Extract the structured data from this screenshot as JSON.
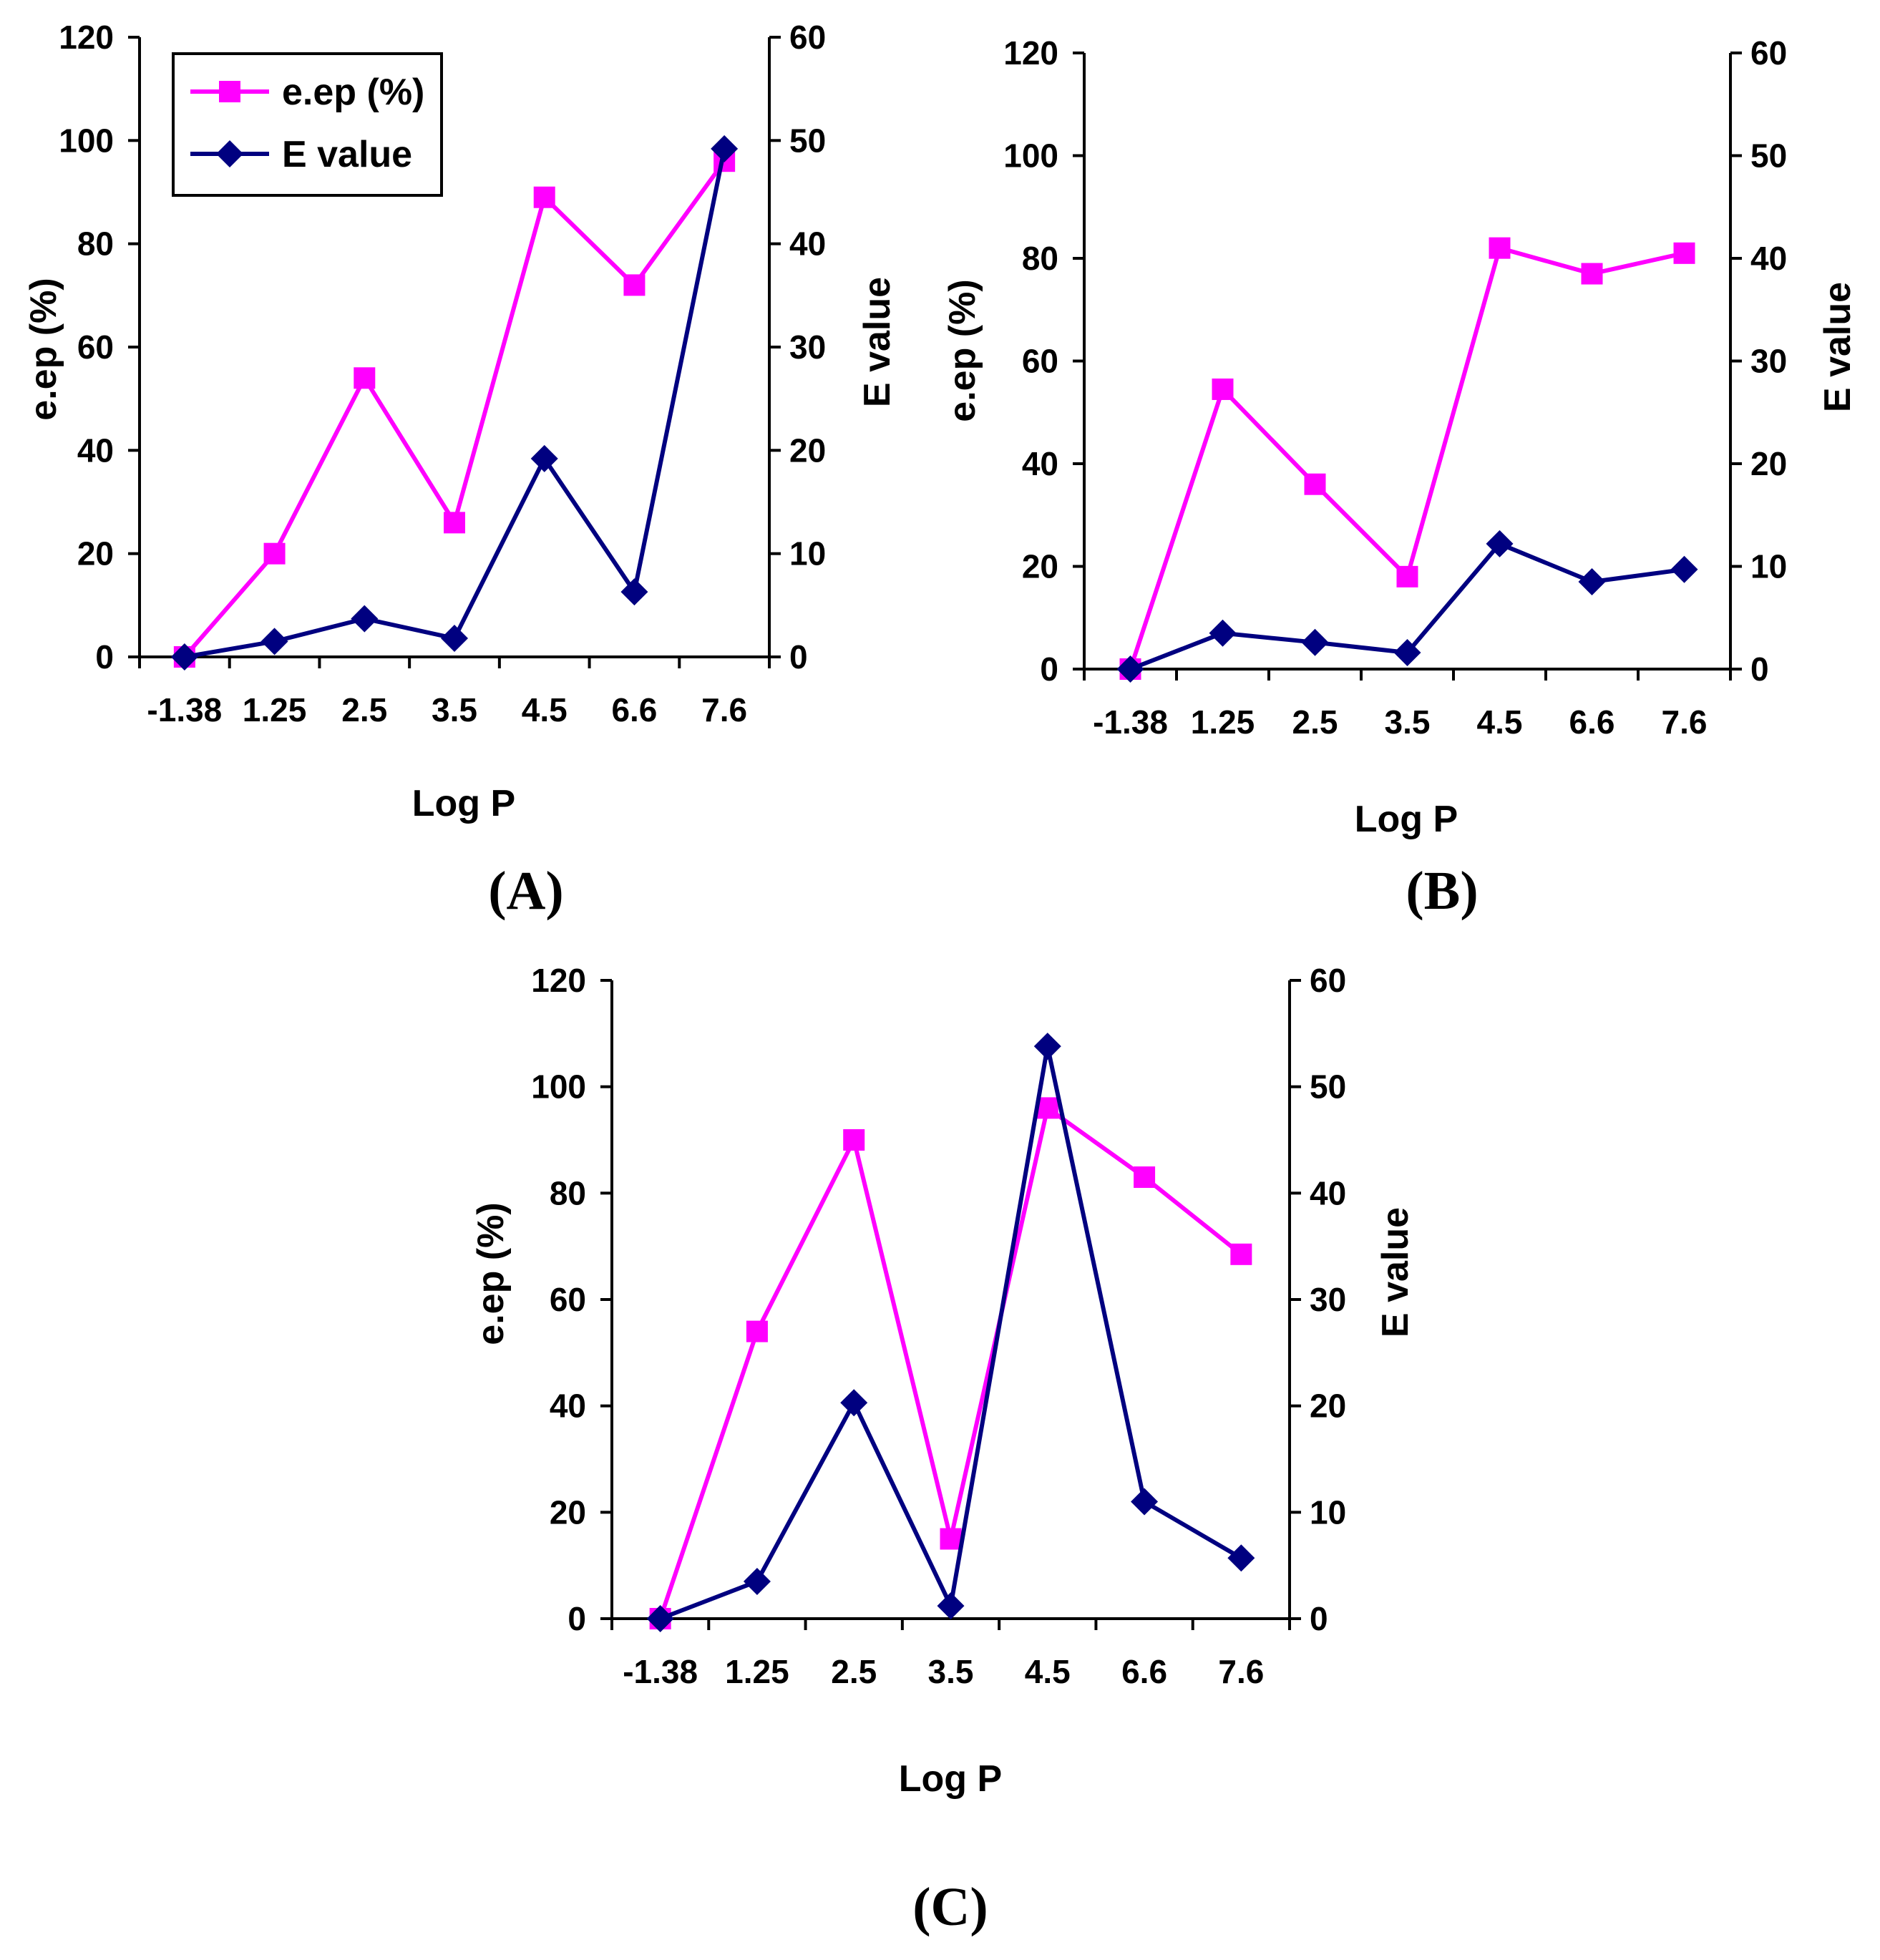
{
  "figure": {
    "series_style": {
      "eep": {
        "name": "e.ep (%)",
        "color": "#FF00FF",
        "marker": "square"
      },
      "E": {
        "name": "E value",
        "color": "#000080",
        "marker": "diamond"
      }
    },
    "legend": {
      "items": [
        "e.ep (%)",
        "E value"
      ],
      "panel": "A",
      "placement": "top-left"
    }
  },
  "chart_data": [
    {
      "panel": "(A)",
      "type": "line",
      "title": "",
      "xlabel": "Log P",
      "ylabel": "e.ep (%)",
      "y2label": "E value",
      "categories": [
        "-1.38",
        "1.25",
        "2.5",
        "3.5",
        "4.5",
        "6.6",
        "7.6"
      ],
      "ylim": [
        0,
        120
      ],
      "y2lim": [
        0,
        60
      ],
      "yticks": [
        "0",
        "20",
        "40",
        "60",
        "80",
        "100",
        "120"
      ],
      "y2ticks": [
        "0",
        "10",
        "20",
        "30",
        "40",
        "50",
        "60"
      ],
      "series": [
        {
          "name": "e.ep (%)",
          "axis": "left",
          "values": [
            0,
            20,
            54,
            26,
            89,
            72,
            96
          ]
        },
        {
          "name": "E value",
          "axis": "right",
          "values": [
            0,
            1.5,
            3.7,
            1.8,
            19.2,
            6.3,
            49.2
          ]
        }
      ]
    },
    {
      "panel": "(B)",
      "type": "line",
      "title": "",
      "xlabel": "Log P",
      "ylabel": "e.ep (%)",
      "y2label": "E value",
      "categories": [
        "-1.38",
        "1.25",
        "2.5",
        "3.5",
        "4.5",
        "6.6",
        "7.6"
      ],
      "ylim": [
        0,
        120
      ],
      "y2lim": [
        0,
        60
      ],
      "yticks": [
        "0",
        "20",
        "40",
        "60",
        "80",
        "100",
        "120"
      ],
      "y2ticks": [
        "0",
        "10",
        "20",
        "30",
        "40",
        "50",
        "60"
      ],
      "series": [
        {
          "name": "e.ep (%)",
          "axis": "left",
          "values": [
            0,
            54.5,
            36,
            18,
            82,
            77,
            81
          ]
        },
        {
          "name": "E value",
          "axis": "right",
          "values": [
            0,
            3.5,
            2.6,
            1.6,
            12.2,
            8.5,
            9.7
          ]
        }
      ]
    },
    {
      "panel": "(C)",
      "type": "line",
      "title": "",
      "xlabel": "Log P",
      "ylabel": "e.ep (%)",
      "y2label": "E value",
      "categories": [
        "-1.38",
        "1.25",
        "2.5",
        "3.5",
        "4.5",
        "6.6",
        "7.6"
      ],
      "ylim": [
        0,
        120
      ],
      "y2lim": [
        0,
        60
      ],
      "yticks": [
        "0",
        "20",
        "40",
        "60",
        "80",
        "100",
        "120"
      ],
      "y2ticks": [
        "0",
        "10",
        "20",
        "30",
        "40",
        "50",
        "60"
      ],
      "series": [
        {
          "name": "e.ep (%)",
          "axis": "left",
          "values": [
            0,
            54,
            90,
            15,
            96,
            83,
            68.5
          ]
        },
        {
          "name": "E value",
          "axis": "right",
          "values": [
            0,
            3.5,
            20.3,
            1.2,
            53.8,
            11,
            5.7
          ]
        }
      ]
    }
  ]
}
